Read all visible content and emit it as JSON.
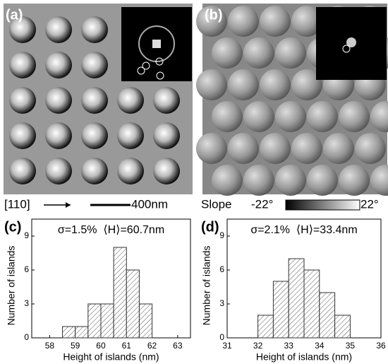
{
  "panels": [
    {
      "label": "(a)"
    },
    {
      "label": "(b)"
    }
  ],
  "scale_row": {
    "direction": "[110]",
    "scale": "400nm",
    "slope_label": "Slope",
    "slope_min": "-22°",
    "slope_max": "22°"
  },
  "chart_data": [
    {
      "type": "histogram",
      "panel_label": "(c)",
      "annotation": "σ=1.5%  ⟨H⟩=60.7nm",
      "x_label": "Height of islands (nm)",
      "y_label": "Number of islands",
      "bins": [
        58.5,
        59,
        59.5,
        60,
        60.5,
        61,
        61.5,
        62
      ],
      "values": [
        1,
        1,
        3,
        3,
        8,
        6,
        3
      ],
      "xlim": [
        57.3,
        63.5
      ],
      "xticks": [
        58,
        59,
        60,
        61,
        62,
        63
      ],
      "ylim": [
        0,
        10.5
      ],
      "yticks": [
        0,
        3,
        6,
        9
      ]
    },
    {
      "type": "histogram",
      "panel_label": "(d)",
      "annotation": "σ=2.1%  ⟨H⟩=33.4nm",
      "x_label": "Height of islands (nm)",
      "y_label": "Number of islands",
      "bins": [
        32,
        32.5,
        33,
        33.5,
        34,
        34.5,
        35
      ],
      "values": [
        2,
        5,
        7,
        6,
        4,
        2
      ],
      "xlim": [
        31,
        36
      ],
      "xticks": [
        31,
        32,
        33,
        34,
        35,
        36
      ],
      "ylim": [
        0,
        10.5
      ],
      "yticks": [
        0,
        3,
        6,
        9
      ]
    }
  ]
}
